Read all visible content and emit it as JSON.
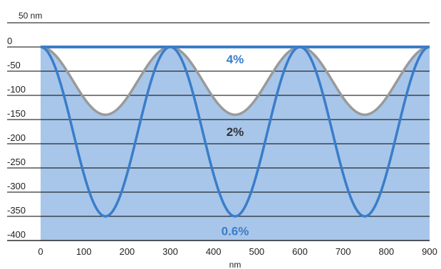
{
  "chart_data": {
    "type": "area",
    "xlabel": "nm",
    "x_ticks": [
      0,
      100,
      200,
      300,
      400,
      500,
      600,
      700,
      800,
      900
    ],
    "xlim": [
      0,
      900
    ],
    "y_top_label": "50 nm",
    "y_ticks": [
      "0",
      "-50",
      "-100",
      "-150",
      "-200",
      "-250",
      "-300",
      "-350",
      "-400"
    ],
    "ylim": [
      -400,
      50
    ],
    "grid": true,
    "period": 300,
    "series": [
      {
        "name": "4%",
        "amplitude": 0,
        "color": "#3a7dc9"
      },
      {
        "name": "2%",
        "amplitude": -140,
        "color": "#9a9a9a"
      },
      {
        "name": "0.6%",
        "amplitude": -350,
        "color": "#3a7dc9"
      }
    ],
    "annotations": [
      {
        "text": "4%",
        "x": 450,
        "y": -25,
        "color": "#3a7dc9"
      },
      {
        "text": "2%",
        "x": 450,
        "y": -175,
        "color": "#333333"
      },
      {
        "text": "0.6%",
        "x": 450,
        "y": -380,
        "color": "#3a7dc9"
      }
    ],
    "colors": {
      "base_fill": "#a8c6ea",
      "gray_fill": "#c2c2c2",
      "blue_line": "#3a7dc9",
      "gray_line": "#9a9a9a",
      "grid": "#000000"
    }
  }
}
